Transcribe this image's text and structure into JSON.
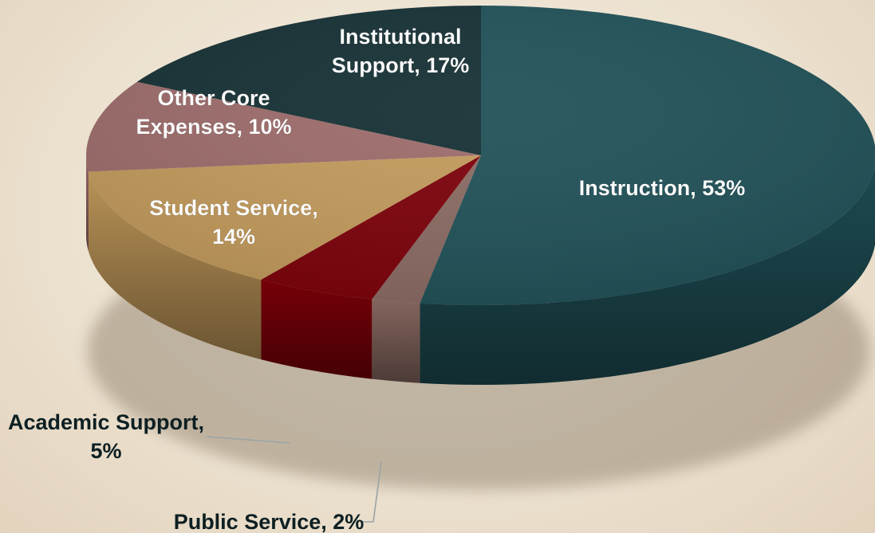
{
  "chart_data": {
    "type": "pie",
    "title": "",
    "slices": [
      {
        "label": "Instruction",
        "value": 53,
        "text": "Instruction, 53%",
        "color": "#1f5057"
      },
      {
        "label": "Public Service",
        "value": 2,
        "text": "Public Service, 2%",
        "color": "#8a6a62"
      },
      {
        "label": "Academic Support",
        "value": 5,
        "text": "Academic Support, 5%",
        "color": "#7c0009"
      },
      {
        "label": "Student Service",
        "value": 14,
        "text": "Student Service, 14%",
        "color": "#c29a5b"
      },
      {
        "label": "Other Core Expenses",
        "value": 10,
        "text": "Other Core Expenses, 10%",
        "color": "#9c6b6a"
      },
      {
        "label": "Institutional Support",
        "value": 17,
        "text": "Institutional Support, 17%",
        "color": "#142f33"
      }
    ],
    "legend": "none",
    "label_color": "#ffffff",
    "outside_label_color": "#0d1f22"
  }
}
